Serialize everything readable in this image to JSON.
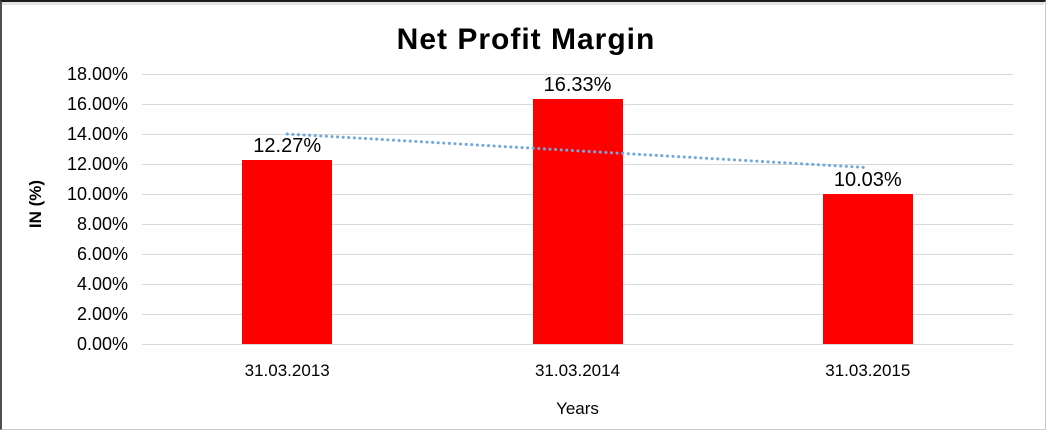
{
  "chart_data": {
    "type": "bar",
    "title": "Net Profit Margin",
    "xlabel": "Years",
    "ylabel": "IN (%)",
    "categories": [
      "31.03.2013",
      "31.03.2014",
      "31.03.2015"
    ],
    "values": [
      12.27,
      16.33,
      10.03
    ],
    "data_labels": [
      "12.27%",
      "16.33%",
      "10.03%"
    ],
    "ylim": [
      0,
      18
    ],
    "ytick_step": 2,
    "ytick_labels": [
      "0.00%",
      "2.00%",
      "4.00%",
      "6.00%",
      "8.00%",
      "10.00%",
      "12.00%",
      "14.00%",
      "16.00%",
      "18.00%"
    ],
    "grid": true,
    "legend_position": "none",
    "bar_color": "#FF0000",
    "gridline_color": "#D9D9D9",
    "text_color": "#000000",
    "trendline": {
      "type": "linear",
      "style": "dotted",
      "color": "#6FA8DC",
      "start_value": 14.0,
      "end_value": 11.76
    }
  }
}
